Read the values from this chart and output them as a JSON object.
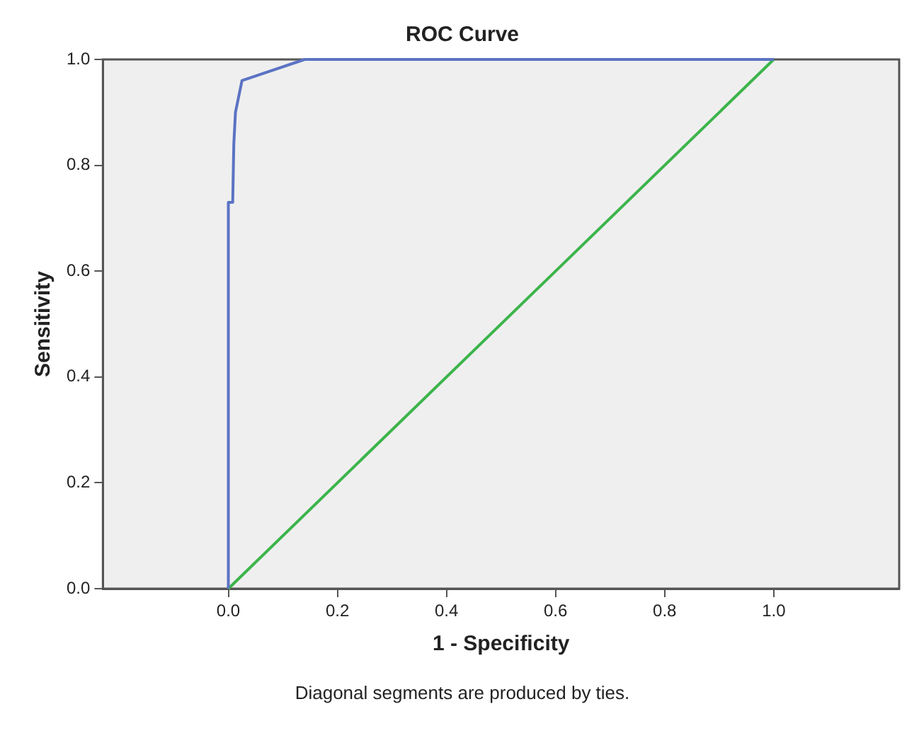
{
  "chart_data": {
    "type": "line",
    "title": "ROC Curve",
    "xlabel": "1 - Specificity",
    "ylabel": "Sensitivity",
    "annotations": [
      "Diagonal segments are produced by ties."
    ],
    "series": [
      {
        "color": "#5b73c4",
        "x": [
          0,
          0,
          0.008,
          0.01,
          0.013,
          0.025,
          0.14,
          1
        ],
        "values": [
          0,
          0.73,
          0.73,
          0.84,
          0.9,
          0.96,
          1,
          1
        ]
      },
      {
        "color": "#3cb44b",
        "x": [
          0,
          1
        ],
        "values": [
          0,
          1
        ]
      }
    ],
    "xlim": [
      -0.23,
      1.23
    ],
    "ylim": [
      0,
      1
    ],
    "xticks": [
      {
        "value": 0,
        "label": "0.0"
      },
      {
        "value": 0.2,
        "label": "0.2"
      },
      {
        "value": 0.4,
        "label": "0.4"
      },
      {
        "value": 0.6,
        "label": "0.6"
      },
      {
        "value": 0.8,
        "label": "0.8"
      },
      {
        "value": 1,
        "label": "1.0"
      }
    ],
    "yticks": [
      {
        "value": 0,
        "label": "0.0"
      },
      {
        "value": 0.2,
        "label": "0.2"
      },
      {
        "value": 0.4,
        "label": "0.4"
      },
      {
        "value": 0.6,
        "label": "0.6"
      },
      {
        "value": 0.8,
        "label": "0.8"
      },
      {
        "value": 1,
        "label": "1.0"
      }
    ],
    "grid": false,
    "legend": false,
    "marker": "none",
    "line_style": "solid"
  }
}
